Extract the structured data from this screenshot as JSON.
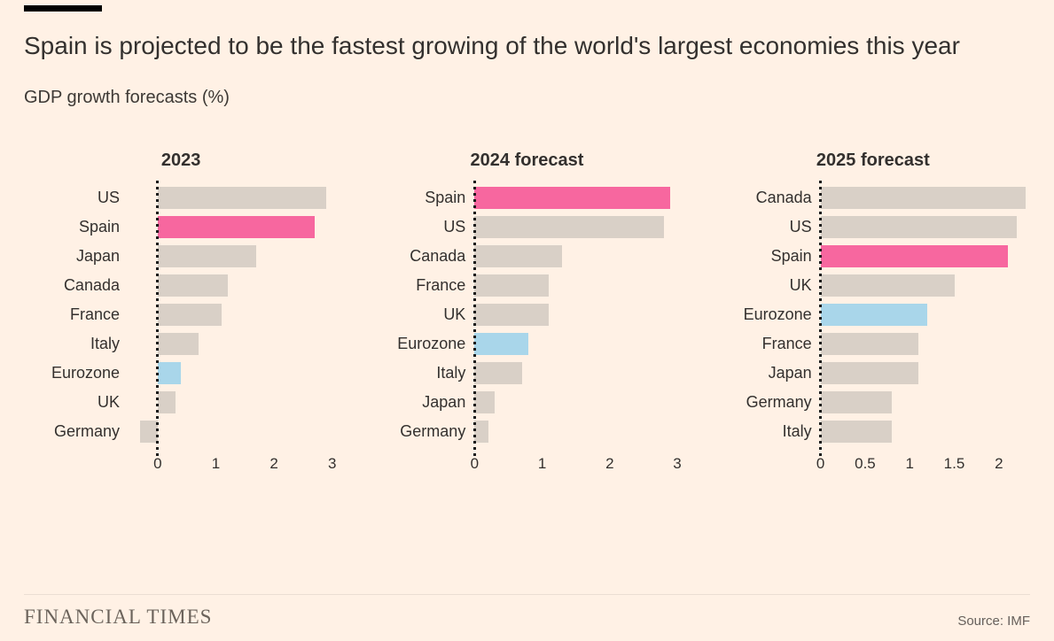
{
  "header": {
    "title": "Spain is projected to be the fastest growing of the world's largest economies this year",
    "subtitle": "GDP growth forecasts (%)"
  },
  "footer": {
    "brand": "FINANCIAL TIMES",
    "source": "Source: IMF"
  },
  "colors": {
    "background": "#FFF1E5",
    "bar_default": "#D9D0C7",
    "bar_spain_highlight": "#F7679F",
    "bar_eurozone_highlight": "#A9D6EA",
    "text": "#33302E",
    "text_muted": "#66605B",
    "axis_dotted_line": "#1A1A1A"
  },
  "chart_data": [
    {
      "type": "bar",
      "orientation": "horizontal",
      "title": "2023",
      "xlabel": "",
      "xlim": [
        -0.5,
        3.1
      ],
      "ticks": [
        0,
        1,
        2,
        3
      ],
      "tick_labels": [
        "0",
        "1",
        "2",
        "3"
      ],
      "series": [
        {
          "label": "US",
          "value": 2.9,
          "color": "#D9D0C7"
        },
        {
          "label": "Spain",
          "value": 2.7,
          "color": "#F7679F"
        },
        {
          "label": "Japan",
          "value": 1.7,
          "color": "#D9D0C7"
        },
        {
          "label": "Canada",
          "value": 1.2,
          "color": "#D9D0C7"
        },
        {
          "label": "France",
          "value": 1.1,
          "color": "#D9D0C7"
        },
        {
          "label": "Italy",
          "value": 0.7,
          "color": "#D9D0C7"
        },
        {
          "label": "Eurozone",
          "value": 0.4,
          "color": "#A9D6EA"
        },
        {
          "label": "UK",
          "value": 0.3,
          "color": "#D9D0C7"
        },
        {
          "label": "Germany",
          "value": -0.3,
          "color": "#D9D0C7"
        }
      ]
    },
    {
      "type": "bar",
      "orientation": "horizontal",
      "title": "2024 forecast",
      "xlabel": "",
      "xlim": [
        0,
        3.1
      ],
      "ticks": [
        0,
        1,
        2,
        3
      ],
      "tick_labels": [
        "0",
        "1",
        "2",
        "3"
      ],
      "series": [
        {
          "label": "Spain",
          "value": 2.9,
          "color": "#F7679F"
        },
        {
          "label": "US",
          "value": 2.8,
          "color": "#D9D0C7"
        },
        {
          "label": "Canada",
          "value": 1.3,
          "color": "#D9D0C7"
        },
        {
          "label": "France",
          "value": 1.1,
          "color": "#D9D0C7"
        },
        {
          "label": "UK",
          "value": 1.1,
          "color": "#D9D0C7"
        },
        {
          "label": "Eurozone",
          "value": 0.8,
          "color": "#A9D6EA"
        },
        {
          "label": "Italy",
          "value": 0.7,
          "color": "#D9D0C7"
        },
        {
          "label": "Japan",
          "value": 0.3,
          "color": "#D9D0C7"
        },
        {
          "label": "Germany",
          "value": 0.2,
          "color": "#D9D0C7"
        }
      ]
    },
    {
      "type": "bar",
      "orientation": "horizontal",
      "title": "2025 forecast",
      "xlabel": "",
      "xlim": [
        0,
        2.35
      ],
      "ticks": [
        0,
        0.5,
        1,
        1.5,
        2
      ],
      "tick_labels": [
        "0",
        "0.5",
        "1",
        "1.5",
        "2"
      ],
      "series": [
        {
          "label": "Canada",
          "value": 2.3,
          "color": "#D9D0C7"
        },
        {
          "label": "US",
          "value": 2.2,
          "color": "#D9D0C7"
        },
        {
          "label": "Spain",
          "value": 2.1,
          "color": "#F7679F"
        },
        {
          "label": "UK",
          "value": 1.5,
          "color": "#D9D0C7"
        },
        {
          "label": "Eurozone",
          "value": 1.2,
          "color": "#A9D6EA"
        },
        {
          "label": "France",
          "value": 1.1,
          "color": "#D9D0C7"
        },
        {
          "label": "Japan",
          "value": 1.1,
          "color": "#D9D0C7"
        },
        {
          "label": "Germany",
          "value": 0.8,
          "color": "#D9D0C7"
        },
        {
          "label": "Italy",
          "value": 0.8,
          "color": "#D9D0C7"
        }
      ]
    }
  ]
}
